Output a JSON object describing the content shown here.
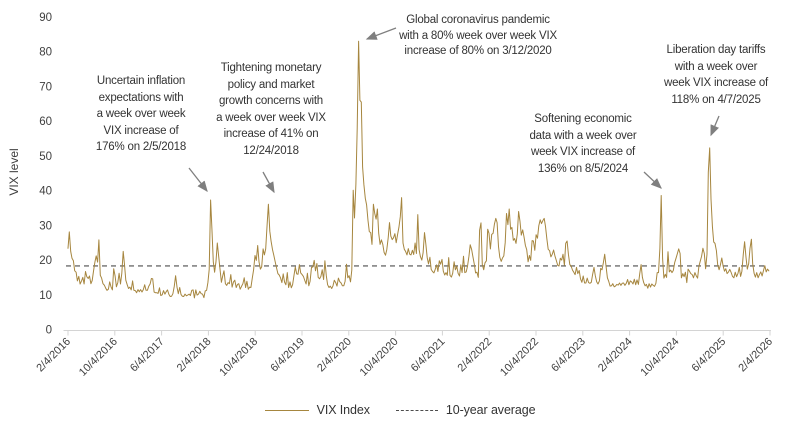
{
  "page": {
    "background": "#ffffff"
  },
  "legend": {
    "vix_label": "VIX Index",
    "average_label": "10-year average"
  },
  "chart_data": {
    "type": "line",
    "title": "",
    "xlabel": "",
    "ylabel": "VIX level",
    "ylim": [
      0,
      90
    ],
    "grid": "off",
    "legend_position": "bottom-center",
    "y_ticks": [
      0,
      10,
      20,
      30,
      40,
      50,
      60,
      70,
      80,
      90
    ],
    "x_tick_labels": [
      "2/4/2016",
      "10/4/2016",
      "6/4/2017",
      "2/4/2018",
      "10/4/2018",
      "6/4/2019",
      "2/4/2020",
      "10/4/2020",
      "6/4/2021",
      "2/4/2022",
      "10/4/2022",
      "6/4/2023",
      "2/4/2024",
      "10/4/2024",
      "6/4/2025",
      "2/4/2026"
    ],
    "x_range": [
      "2/4/2016",
      "2/4/2026"
    ],
    "series": [
      {
        "name": "VIX Index",
        "style": "solid",
        "color": "#a6863f",
        "frequency": "weekly",
        "start": "2/4/2016",
        "values": [
          23.4,
          28.1,
          22.5,
          20.5,
          19.8,
          16.9,
          16.5,
          14.0,
          15.3,
          13.1,
          14.0,
          15.0,
          13.1,
          16.7,
          15.2,
          14.7,
          15.4,
          13.2,
          14.1,
          17.0,
          19.4,
          21.2,
          19.4,
          25.8,
          15.6,
          14.8,
          13.2,
          12.8,
          11.9,
          11.3,
          11.6,
          13.7,
          12.3,
          11.4,
          17.5,
          15.4,
          12.3,
          13.5,
          16.2,
          13.1,
          16.2,
          22.5,
          18.7,
          14.2,
          12.9,
          11.8,
          12.2,
          11.4,
          14.0,
          11.3,
          11.2,
          10.6,
          11.5,
          10.9,
          11.5,
          10.8,
          11.5,
          12.9,
          11.3,
          11.3,
          12.4,
          13.1,
          14.7,
          14.6,
          10.8,
          10.6,
          10.6,
          10.4,
          12.0,
          9.8,
          10.0,
          11.2,
          10.2,
          10.9,
          11.4,
          10.1,
          9.5,
          9.6,
          10.3,
          12.5,
          15.5,
          12.2,
          10.3,
          12.1,
          10.1,
          9.6,
          9.5,
          10.2,
          9.7,
          9.9,
          10.2,
          9.8,
          11.3,
          11.4,
          9.1,
          11.4,
          9.9,
          10.2,
          11.0,
          10.3,
          10.2,
          9.2,
          11.1,
          11.3,
          13.5,
          17.3,
          37.3,
          29.1,
          19.5,
          16.5,
          19.6,
          24.9,
          21.0,
          17.4,
          13.6,
          15.4,
          16.9,
          13.2,
          12.7,
          13.5,
          13.2,
          15.8,
          12.2,
          13.7,
          14.2,
          12.1,
          13.0,
          13.2,
          11.6,
          12.4,
          13.2,
          14.9,
          12.1,
          13.9,
          11.6,
          12.2,
          12.1,
          14.8,
          17.2,
          21.3,
          19.9,
          24.2,
          19.5,
          17.4,
          18.1,
          23.2,
          21.5,
          23.2,
          30.1,
          36.1,
          28.3,
          25.4,
          23.0,
          21.4,
          19.5,
          17.8,
          16.1,
          15.7,
          14.9,
          13.5,
          16.0,
          13.6,
          12.9,
          16.4,
          12.1,
          13.7,
          12.0,
          12.9,
          15.6,
          18.0,
          16.0,
          15.9,
          18.7,
          16.3,
          15.8,
          15.3,
          14.1,
          13.1,
          16.2,
          12.6,
          13.9,
          17.9,
          18.0,
          19.9,
          16.9,
          19.0,
          15.0,
          14.6,
          15.3,
          17.2,
          14.4,
          19.8,
          15.5,
          12.9,
          12.1,
          12.5,
          11.8,
          12.6,
          14.2,
          13.5,
          12.5,
          14.8,
          13.8,
          13.4,
          12.6,
          12.6,
          13.9,
          18.8,
          14.9,
          15.5,
          13.7,
          17.1,
          40.1,
          32.1,
          41.9,
          57.8,
          83.0,
          66.0,
          65.5,
          46.8,
          41.7,
          37.8,
          35.9,
          31.4,
          28.2,
          27.9,
          24.5,
          36.1,
          33.5,
          31.8,
          34.7,
          27.7,
          24.5,
          25.8,
          24.5,
          22.2,
          21.4,
          23.0,
          26.4,
          30.8,
          26.9,
          25.9,
          26.4,
          27.6,
          25.0,
          27.4,
          29.4,
          32.5,
          38.0,
          24.9,
          23.1,
          22.5,
          21.5,
          23.3,
          21.7,
          21.5,
          22.8,
          21.6,
          24.9,
          21.9,
          33.1,
          23.0,
          21.0,
          20.0,
          22.1,
          27.9,
          24.7,
          20.7,
          18.9,
          20.8,
          17.3,
          16.7,
          16.3,
          17.3,
          18.6,
          16.7,
          19.8,
          18.8,
          20.2,
          16.8,
          15.7,
          16.4,
          15.6,
          20.7,
          15.6,
          15.1,
          16.2,
          19.5,
          17.2,
          18.2,
          16.2,
          15.4,
          18.6,
          16.4,
          21.1,
          16.4,
          16.6,
          18.2,
          21.0,
          24.4,
          23.1,
          21.0,
          18.8,
          16.3,
          16.5,
          15.0,
          28.6,
          30.7,
          18.7,
          17.2,
          19.2,
          19.8,
          28.9,
          27.7,
          23.2,
          27.4,
          27.7,
          30.3,
          32.0,
          30.8,
          23.9,
          20.8,
          19.6,
          20.6,
          21.2,
          25.0,
          33.4,
          30.2,
          34.7,
          28.9,
          29.4,
          25.7,
          26.2,
          24.8,
          27.5,
          34.0,
          31.1,
          27.2,
          28.7,
          26.7,
          24.2,
          23.0,
          19.5,
          21.3,
          19.9,
          25.6,
          25.5,
          22.8,
          27.3,
          26.3,
          29.9,
          31.6,
          30.5,
          31.4,
          32.0,
          29.7,
          26.0,
          23.1,
          22.7,
          20.9,
          21.7,
          22.9,
          21.1,
          19.9,
          18.5,
          18.3,
          20.5,
          20.0,
          21.7,
          18.5,
          24.8,
          25.5,
          21.7,
          18.7,
          18.3,
          17.1,
          16.5,
          15.8,
          17.9,
          16.1,
          17.0,
          14.6,
          13.6,
          15.4,
          13.4,
          13.4,
          14.8,
          13.5,
          13.3,
          13.6,
          15.8,
          17.9,
          15.5,
          13.7,
          13.1,
          14.0,
          17.6,
          17.2,
          19.3,
          21.7,
          18.1,
          14.9,
          13.8,
          12.5,
          12.6,
          13.2,
          12.3,
          12.5,
          13.0,
          12.8,
          13.4,
          12.7,
          13.3,
          13.4,
          12.7,
          13.3,
          14.4,
          12.9,
          14.0,
          13.7,
          13.1,
          14.5,
          12.9,
          14.3,
          13.0,
          16.0,
          18.7,
          15.0,
          13.5,
          12.6,
          13.0,
          11.9,
          13.2,
          12.2,
          13.1,
          12.7,
          12.4,
          13.3,
          16.4,
          16.4,
          23.4,
          38.6,
          20.4,
          14.8,
          15.9,
          15.0,
          22.4,
          16.6,
          17.1,
          16.4,
          17.0,
          19.3,
          20.5,
          21.9,
          23.2,
          21.9,
          14.9,
          16.1,
          15.2,
          16.5,
          13.5,
          17.4,
          16.8,
          16.1,
          15.8,
          14.9,
          16.4,
          15.5,
          14.8,
          18.2,
          19.6,
          21.1,
          23.4,
          21.9,
          17.5,
          21.7,
          45.3,
          52.3,
          37.6,
          29.7,
          25.2,
          24.8,
          22.7,
          18.6,
          17.2,
          18.6,
          20.6,
          18.3,
          16.8,
          17.5,
          16.1,
          16.6,
          17.3,
          16.4,
          15.3,
          14.9,
          16.5,
          15.2,
          16.1,
          17.9,
          15.3,
          16.8,
          21.7,
          25.3,
          20.8,
          17.4,
          19.0,
          23.4,
          26.0,
          18.9,
          16.2,
          15.1,
          16.4,
          14.9,
          15.8,
          16.6,
          15.4,
          17.0,
          18.4,
          16.6,
          17.4,
          16.9
        ]
      },
      {
        "name": "10-year average",
        "style": "dashed",
        "color": "#4d4d4d",
        "value": 18.3
      }
    ],
    "annotations": [
      {
        "text": "Uncertain inflation\nexpectations with\na week over week\nVIX increase of\n176% on 2/5/2018",
        "points_to": "2/5/2018"
      },
      {
        "text": "Tightening monetary\npolicy and market\ngrowth concerns with\na week over week VIX\nincrease of 41% on\n12/24/2018",
        "points_to": "12/24/2018"
      },
      {
        "text": "Global coronavirus pandemic\nwith a 80% week over week VIX\nincrease of 80% on 3/12/2020",
        "points_to": "3/12/2020"
      },
      {
        "text": "Softening economic\ndata with a week over\nweek VIX increase of\n136% on 8/5/2024",
        "points_to": "8/5/2024"
      },
      {
        "text": "Liberation day tariffs\nwith a week over\nweek VIX increase of\n118% on 4/7/2025",
        "points_to": "4/7/2025"
      }
    ]
  }
}
